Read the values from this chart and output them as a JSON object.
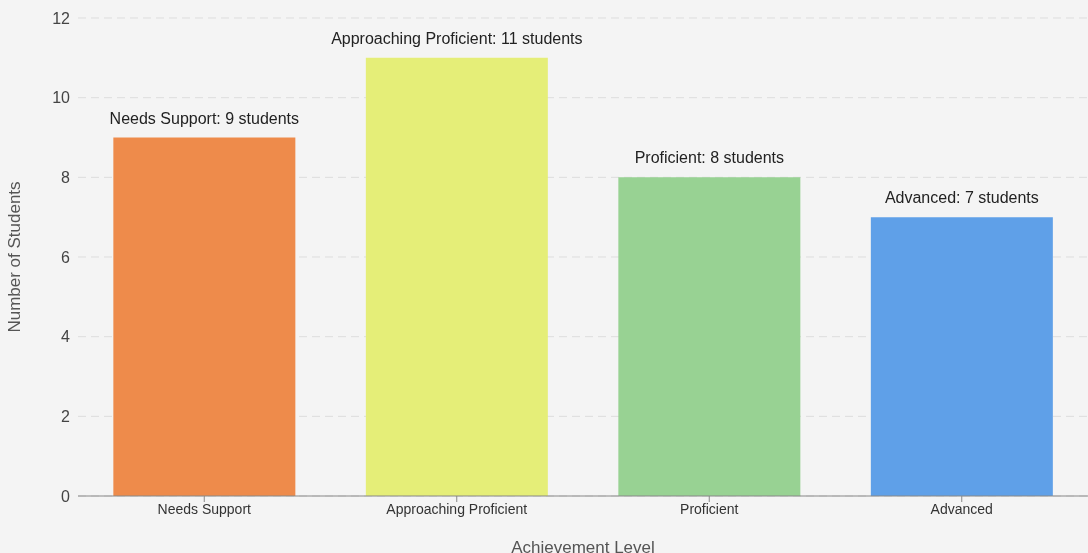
{
  "chart_data": {
    "type": "bar",
    "xlabel": "Achievement Level",
    "ylabel": "Number of Students",
    "categories": [
      "Needs Support",
      "Approaching Proficient",
      "Proficient",
      "Advanced"
    ],
    "values": [
      9,
      11,
      8,
      7
    ],
    "colors": [
      "#ee8b4b",
      "#e5ee78",
      "#98d293",
      "#5fa0e8"
    ],
    "value_labels": [
      "Needs Support: 9 students",
      "Approaching Proficient: 11 students",
      "Proficient: 8 students",
      "Advanced: 7 students"
    ],
    "ylim": [
      0,
      12
    ],
    "yticks": [
      0,
      2,
      4,
      6,
      8,
      10,
      12
    ],
    "grid": "y"
  }
}
